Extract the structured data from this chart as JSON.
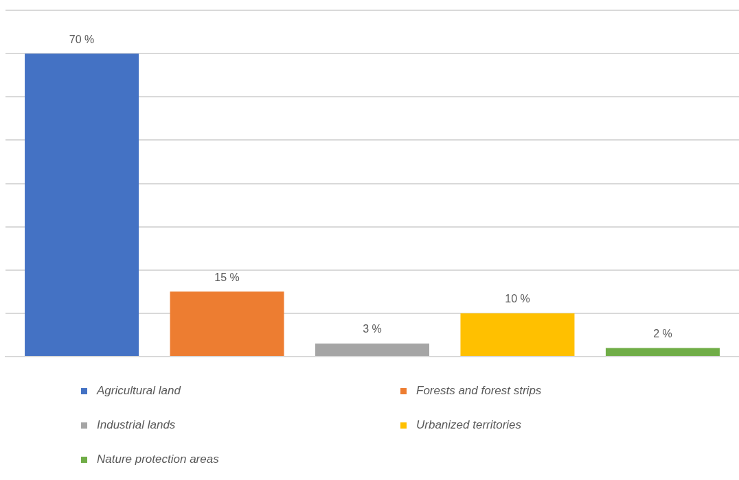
{
  "chart_data": {
    "type": "bar",
    "categories": [
      null
    ],
    "series": [
      {
        "name": "Agricultural land",
        "color": "#4472c4",
        "values": [
          70
        ],
        "value_labels": [
          "70 %"
        ]
      },
      {
        "name": "Forests and forest strips",
        "color": "#ed7d31",
        "values": [
          15
        ],
        "value_labels": [
          "15 %"
        ]
      },
      {
        "name": "Industrial lands",
        "color": "#a5a5a5",
        "values": [
          3
        ],
        "value_labels": [
          "3 %"
        ]
      },
      {
        "name": "Urbanized territories",
        "color": "#ffc000",
        "values": [
          10
        ],
        "value_labels": [
          "10 %"
        ]
      },
      {
        "name": "Nature protection areas",
        "color": "#70ad47",
        "values": [
          2
        ],
        "value_labels": [
          "2 %"
        ]
      }
    ],
    "ylim": [
      0,
      80
    ],
    "yticks": [
      0,
      10,
      20,
      30,
      40,
      50,
      60,
      70,
      80
    ],
    "grid": "y",
    "tick_labels": false,
    "legend": "bottom"
  }
}
